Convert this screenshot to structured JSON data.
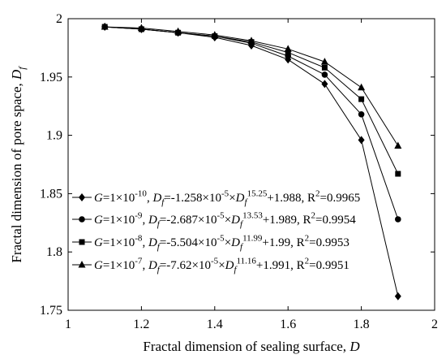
{
  "chart_data": {
    "type": "line",
    "xlabel": "Fractal dimension of sealing surface, D",
    "ylabel": "Fractal dimension of pore space, Df",
    "xlabel_parts": [
      {
        "text": "Fractal dimension of sealing surface, ",
        "style": "normal"
      },
      {
        "text": "D",
        "style": "italic"
      }
    ],
    "ylabel_parts": [
      {
        "text": "Fractal dimension of pore space, ",
        "style": "normal"
      },
      {
        "text": "D",
        "style": "italic"
      },
      {
        "text": "f",
        "style": "italic-sub"
      }
    ],
    "xlim": [
      1,
      2
    ],
    "ylim": [
      1.75,
      2
    ],
    "xticks": [
      1,
      1.2,
      1.4,
      1.6,
      1.8,
      2
    ],
    "xtick_labels": [
      "1",
      "1.2",
      "1.4",
      "1.6",
      "1.8",
      "2"
    ],
    "yticks": [
      1.75,
      1.8,
      1.85,
      1.9,
      1.95,
      2
    ],
    "ytick_labels": [
      "1.75",
      "1.8",
      "1.85",
      "1.9",
      "1.95",
      "2"
    ],
    "grid": false,
    "legend_position": "lower-left",
    "series": [
      {
        "marker": "diamond",
        "x": [
          1.1,
          1.2,
          1.3,
          1.4,
          1.5,
          1.6,
          1.7,
          1.8,
          1.9
        ],
        "y": [
          1.993,
          1.991,
          1.988,
          1.984,
          1.977,
          1.965,
          1.944,
          1.896,
          1.762
        ],
        "legend_parts": [
          {
            "text": "G",
            "style": "italic"
          },
          {
            "text": "=1×10",
            "style": "normal"
          },
          {
            "text": "-10",
            "style": "sup"
          },
          {
            "text": ", ",
            "style": "normal"
          },
          {
            "text": "D",
            "style": "italic"
          },
          {
            "text": "f",
            "style": "italic-sub"
          },
          {
            "text": "=-1.258×10",
            "style": "normal"
          },
          {
            "text": "-5",
            "style": "sup"
          },
          {
            "text": "×",
            "style": "normal"
          },
          {
            "text": "D",
            "style": "italic"
          },
          {
            "text": "f",
            "style": "italic-sub"
          },
          {
            "text": "15.25",
            "style": "sup"
          },
          {
            "text": "+1.988, R",
            "style": "normal"
          },
          {
            "text": "2",
            "style": "sup"
          },
          {
            "text": "=0.9965",
            "style": "normal"
          }
        ]
      },
      {
        "marker": "circle",
        "x": [
          1.1,
          1.2,
          1.3,
          1.4,
          1.5,
          1.6,
          1.7,
          1.8,
          1.9
        ],
        "y": [
          1.993,
          1.991,
          1.988,
          1.985,
          1.979,
          1.968,
          1.952,
          1.918,
          1.828
        ],
        "legend_parts": [
          {
            "text": "G",
            "style": "italic"
          },
          {
            "text": "=1×10",
            "style": "normal"
          },
          {
            "text": "-9",
            "style": "sup"
          },
          {
            "text": ", ",
            "style": "normal"
          },
          {
            "text": "D",
            "style": "italic"
          },
          {
            "text": "f",
            "style": "italic-sub"
          },
          {
            "text": "=-2.687×10",
            "style": "normal"
          },
          {
            "text": "-5",
            "style": "sup"
          },
          {
            "text": "×",
            "style": "normal"
          },
          {
            "text": "D",
            "style": "italic"
          },
          {
            "text": "f",
            "style": "italic-sub"
          },
          {
            "text": "13.53",
            "style": "sup"
          },
          {
            "text": "+1.989, R",
            "style": "normal"
          },
          {
            "text": "2",
            "style": "sup"
          },
          {
            "text": "=0.9954",
            "style": "normal"
          }
        ]
      },
      {
        "marker": "square",
        "x": [
          1.1,
          1.2,
          1.3,
          1.4,
          1.5,
          1.6,
          1.7,
          1.8,
          1.9
        ],
        "y": [
          1.993,
          1.991,
          1.988,
          1.985,
          1.98,
          1.971,
          1.958,
          1.931,
          1.867
        ],
        "legend_parts": [
          {
            "text": "G",
            "style": "italic"
          },
          {
            "text": "=1×10",
            "style": "normal"
          },
          {
            "text": "-8",
            "style": "sup"
          },
          {
            "text": ", ",
            "style": "normal"
          },
          {
            "text": "D",
            "style": "italic"
          },
          {
            "text": "f",
            "style": "italic-sub"
          },
          {
            "text": "=-5.504×10",
            "style": "normal"
          },
          {
            "text": "-5",
            "style": "sup"
          },
          {
            "text": "×",
            "style": "normal"
          },
          {
            "text": "D",
            "style": "italic"
          },
          {
            "text": "f",
            "style": "italic-sub"
          },
          {
            "text": "11.99",
            "style": "sup"
          },
          {
            "text": "+1.99, R",
            "style": "normal"
          },
          {
            "text": "2",
            "style": "sup"
          },
          {
            "text": "=0.9953",
            "style": "normal"
          }
        ]
      },
      {
        "marker": "triangle",
        "x": [
          1.1,
          1.2,
          1.3,
          1.4,
          1.5,
          1.6,
          1.7,
          1.8,
          1.9
        ],
        "y": [
          1.993,
          1.992,
          1.989,
          1.986,
          1.981,
          1.974,
          1.963,
          1.941,
          1.891
        ],
        "legend_parts": [
          {
            "text": "G",
            "style": "italic"
          },
          {
            "text": "=1×10",
            "style": "normal"
          },
          {
            "text": "-7",
            "style": "sup"
          },
          {
            "text": ", ",
            "style": "normal"
          },
          {
            "text": "D",
            "style": "italic"
          },
          {
            "text": "f",
            "style": "italic-sub"
          },
          {
            "text": "=-7.62×10",
            "style": "normal"
          },
          {
            "text": "-5",
            "style": "sup"
          },
          {
            "text": "×",
            "style": "normal"
          },
          {
            "text": "D",
            "style": "italic"
          },
          {
            "text": "f",
            "style": "italic-sub"
          },
          {
            "text": "11.16",
            "style": "sup"
          },
          {
            "text": "+1.991, R",
            "style": "normal"
          },
          {
            "text": "2",
            "style": "sup"
          },
          {
            "text": "=0.9951",
            "style": "normal"
          }
        ]
      }
    ]
  }
}
